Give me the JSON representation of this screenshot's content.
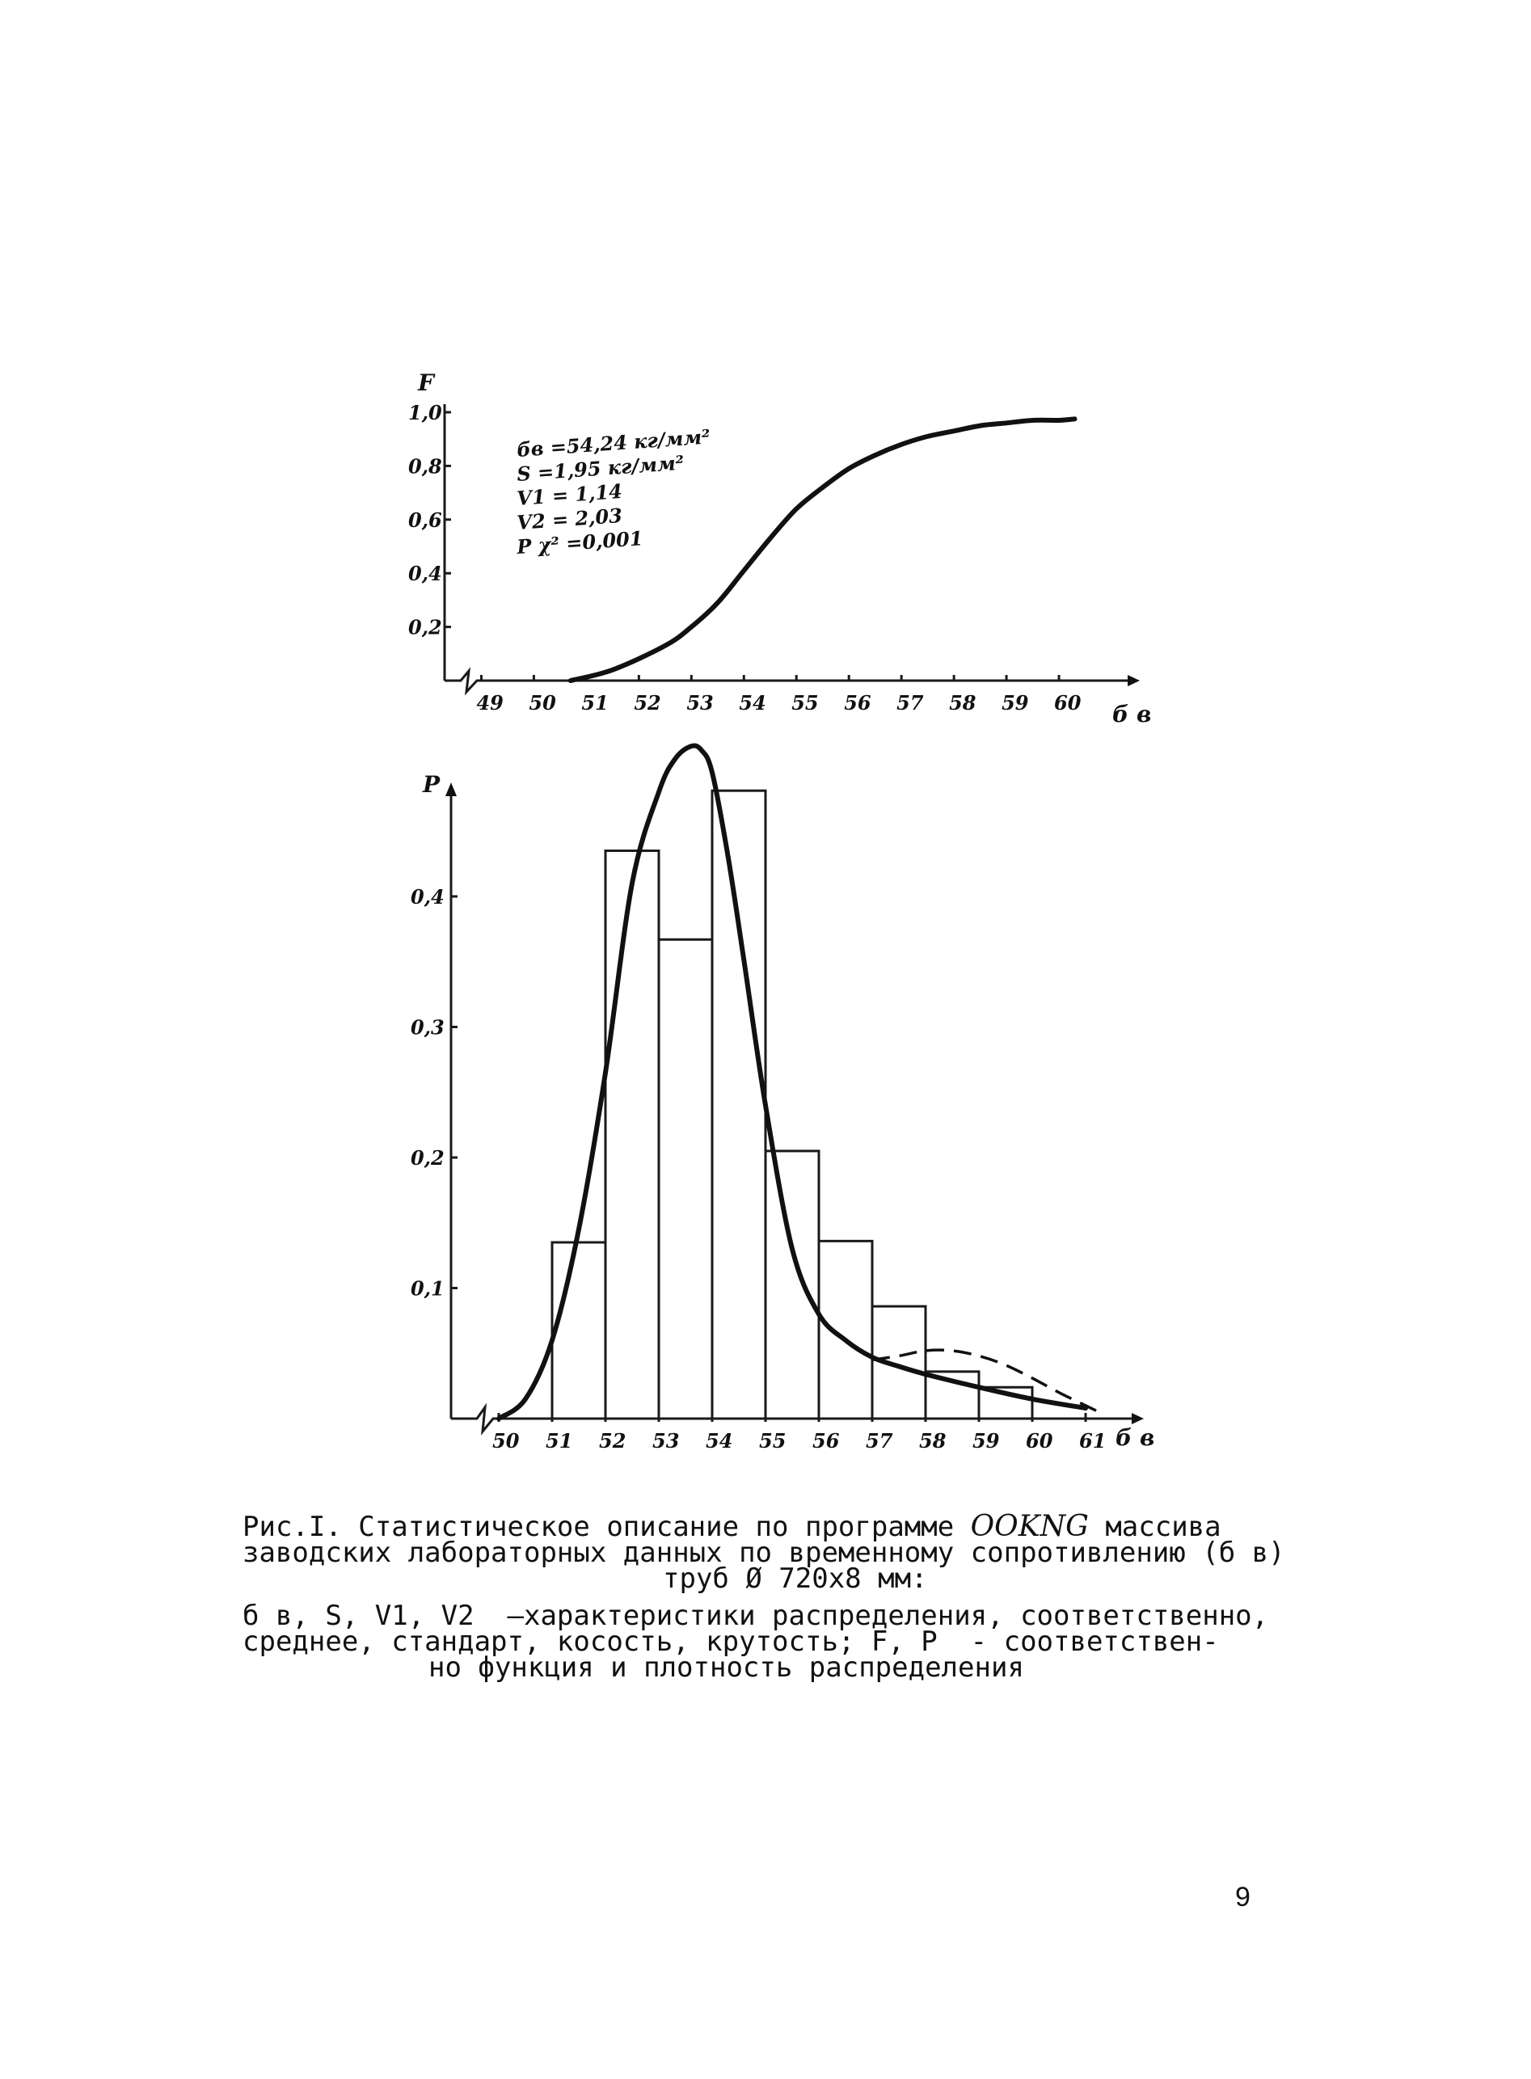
{
  "chart_data": [
    {
      "type": "line",
      "ylabel": "F",
      "xlabel": "б в",
      "x_ticks": [
        "49",
        "50",
        "51",
        "52",
        "53",
        "54",
        "55",
        "56",
        "57",
        "58",
        "59",
        "60"
      ],
      "y_ticks": [
        "1,0",
        "0,8",
        "0,6",
        "0,4",
        "0,2"
      ],
      "xlim": [
        48.3,
        61
      ],
      "ylim": [
        0,
        1.0
      ],
      "x_axis_break": true,
      "grid": false,
      "annotations": [
        "б̄в =54,24 кг/мм²",
        "S =1,95 кг/мм²",
        "V1 = 1,14",
        "V2 = 2,03",
        "P χ² =0,001"
      ],
      "series": [
        {
          "x": [
            50.7,
            51.5,
            52.5,
            53.0,
            53.5,
            54.0,
            54.5,
            55.0,
            55.5,
            56.0,
            56.5,
            57.0,
            57.5,
            58.0,
            58.5,
            59.0,
            59.5,
            60.0,
            60.3
          ],
          "y": [
            0.0,
            0.04,
            0.13,
            0.2,
            0.29,
            0.41,
            0.53,
            0.64,
            0.72,
            0.79,
            0.84,
            0.88,
            0.91,
            0.93,
            0.95,
            0.96,
            0.97,
            0.97,
            0.975
          ]
        }
      ]
    },
    {
      "type": "bar",
      "ylabel": "P",
      "xlabel": "б в",
      "x_ticks": [
        "50",
        "51",
        "52",
        "53",
        "54",
        "55",
        "56",
        "57",
        "58",
        "59",
        "60",
        "61"
      ],
      "y_ticks": [
        "0,4",
        "0,3",
        "0,2",
        "0,1"
      ],
      "xlim": [
        49.3,
        61.8
      ],
      "ylim": [
        0,
        0.5
      ],
      "x_axis_break": true,
      "grid": false,
      "bins": [
        {
          "from": 51,
          "to": 52,
          "value": 0.135
        },
        {
          "from": 52,
          "to": 53,
          "value": 0.435
        },
        {
          "from": 53,
          "to": 54,
          "value": 0.367
        },
        {
          "from": 54,
          "to": 55,
          "value": 0.481
        },
        {
          "from": 55,
          "to": 56,
          "value": 0.205
        },
        {
          "from": 56,
          "to": 57,
          "value": 0.136
        },
        {
          "from": 57,
          "to": 58,
          "value": 0.086
        },
        {
          "from": 58,
          "to": 59,
          "value": 0.036
        },
        {
          "from": 59,
          "to": 60,
          "value": 0.024
        }
      ],
      "series": [
        {
          "style": "solid",
          "x": [
            50.0,
            50.5,
            51.0,
            51.5,
            52.0,
            52.5,
            53.0,
            53.3,
            53.6,
            53.8,
            54.0,
            54.3,
            54.6,
            55.0,
            55.5,
            56.0,
            56.5,
            57.0,
            57.5,
            58.0,
            59.0,
            60.0,
            61.0
          ],
          "y": [
            0.0,
            0.015,
            0.06,
            0.145,
            0.265,
            0.41,
            0.48,
            0.505,
            0.515,
            0.512,
            0.495,
            0.43,
            0.35,
            0.24,
            0.13,
            0.08,
            0.06,
            0.047,
            0.04,
            0.034,
            0.024,
            0.015,
            0.008
          ]
        },
        {
          "style": "dashed",
          "x": [
            57.0,
            57.5,
            58.0,
            58.5,
            59.0,
            59.5,
            60.0,
            60.5,
            61.0,
            61.3
          ],
          "y": [
            0.045,
            0.048,
            0.052,
            0.052,
            0.048,
            0.041,
            0.031,
            0.02,
            0.01,
            0.004
          ]
        }
      ]
    }
  ],
  "caption": {
    "line1_a": "Рис.I. Статистическое описание по программе ",
    "line1_hand": "OOKNG",
    "line1_b": " массива",
    "line2": "заводских лабораторных данных по временному сопротивлению (б в)",
    "line3": "труб Ø 720х8 мм:",
    "line4": "б в, S, V1, V2  –характеристики распределения, соответственно,",
    "line5": "среднее, стандарт, косость, крутость; F, P  - соответствен-",
    "line6": "но функция и плотность распределения"
  },
  "page_number": "9"
}
